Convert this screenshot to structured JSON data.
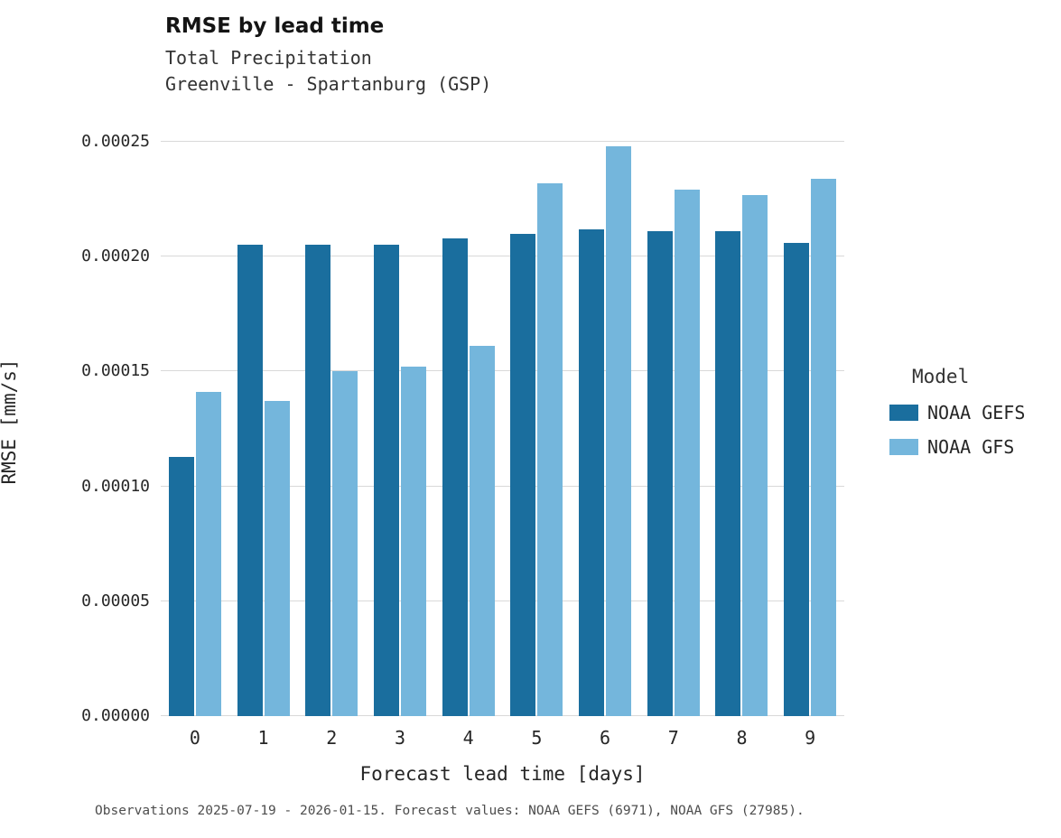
{
  "chart": {
    "title": "RMSE by lead time",
    "subtitle1": "Total Precipitation",
    "subtitle2": "Greenville - Spartanburg (GSP)",
    "xlabel": "Forecast lead time [days]",
    "ylabel": "RMSE [mm/s]",
    "legend_title": "Model",
    "caption": "Observations 2025-07-19 - 2026-01-15. Forecast values: NOAA GEFS (6971), NOAA GFS (27985)."
  },
  "chart_data": {
    "type": "bar",
    "title": "RMSE by lead time",
    "subtitle": [
      "Total Precipitation",
      "Greenville - Spartanburg (GSP)"
    ],
    "xlabel": "Forecast lead time [days]",
    "ylabel": "RMSE [mm/s]",
    "categories": [
      "0",
      "1",
      "2",
      "3",
      "4",
      "5",
      "6",
      "7",
      "8",
      "9"
    ],
    "series": [
      {
        "name": "NOAA GEFS",
        "color": "#1a6e9e",
        "values": [
          0.000113,
          0.000205,
          0.000205,
          0.000205,
          0.000208,
          0.00021,
          0.000212,
          0.000211,
          0.000211,
          0.000206
        ]
      },
      {
        "name": "NOAA GFS",
        "color": "#74b6dc",
        "values": [
          0.000141,
          0.000137,
          0.00015,
          0.000152,
          0.000161,
          0.000232,
          0.000248,
          0.000229,
          0.000227,
          0.000234
        ]
      }
    ],
    "ylim": [
      0,
      0.00025
    ],
    "yticks": [
      0,
      5e-05,
      0.0001,
      0.00015,
      0.0002,
      0.00025
    ],
    "ytick_labels": [
      "0.00000",
      "0.00005",
      "0.00010",
      "0.00015",
      "0.00020",
      "0.00025"
    ],
    "grid": "horizontal",
    "legend_position": "right",
    "legend_title": "Model"
  }
}
